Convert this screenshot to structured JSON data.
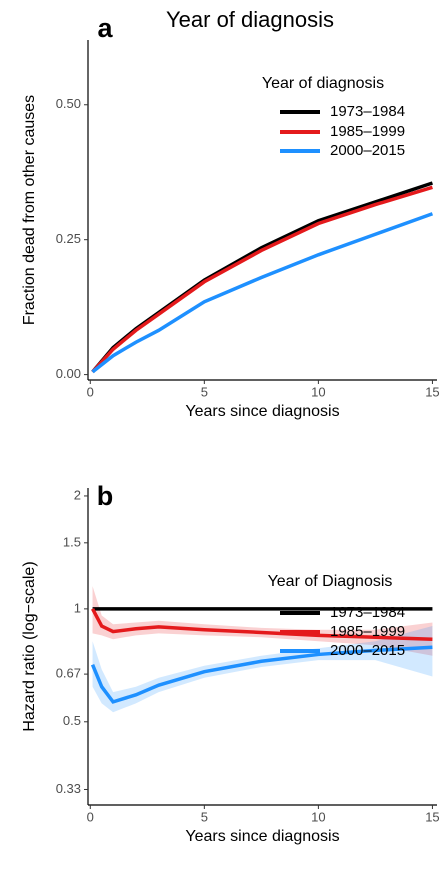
{
  "chart_data": [
    {
      "type": "line",
      "panel": "a",
      "title": "Year of diagnosis",
      "x_label": "Years since diagnosis",
      "y_label": "Fraction dead from other causes",
      "xlim": [
        -0.1,
        15.2
      ],
      "xticks": [
        0,
        5,
        10,
        15
      ],
      "ylim": [
        -0.01,
        0.62
      ],
      "yticks": [
        {
          "value": 0,
          "label": "0.00"
        },
        {
          "value": 0.25,
          "label": "0.25"
        },
        {
          "value": 0.5,
          "label": "0.50"
        }
      ],
      "log_scale": false,
      "grid": false,
      "legend": "top-right",
      "legend_title": "Year of diagnosis",
      "x": [
        0.1,
        1,
        2,
        3,
        5,
        7.5,
        10,
        12.5,
        15
      ],
      "series": [
        {
          "name": "1973–1984",
          "color": "#000000",
          "values": [
            0.005,
            0.05,
            0.085,
            0.115,
            0.175,
            0.235,
            0.285,
            0.32,
            0.355
          ]
        },
        {
          "name": "1985–1999",
          "color": "#e41a1c",
          "values": [
            0.005,
            0.047,
            0.082,
            0.112,
            0.172,
            0.23,
            0.28,
            0.315,
            0.347
          ]
        },
        {
          "name": "2000–2015",
          "color": "#1e90ff",
          "values": [
            0.005,
            0.035,
            0.06,
            0.082,
            0.135,
            0.18,
            0.222,
            0.26,
            0.298
          ]
        }
      ]
    },
    {
      "type": "line",
      "panel": "b",
      "x_label": "Years since diagnosis",
      "y_label": "Hazard ratio (log−scale)",
      "xlim": [
        -0.1,
        15.2
      ],
      "xticks": [
        0,
        5,
        10,
        15
      ],
      "ylim": [
        0.3,
        2.1
      ],
      "yticks": [
        0.33,
        0.5,
        0.67,
        1,
        1.5,
        2
      ],
      "log_scale": true,
      "grid": false,
      "legend": "bottom-right",
      "legend_title": "Year of Diagnosis",
      "x": [
        0.1,
        0.5,
        1,
        2,
        3,
        5,
        7.5,
        10,
        12.5,
        15
      ],
      "series": [
        {
          "name": "1973–1984",
          "color": "#000000",
          "values": [
            1,
            1,
            1,
            1,
            1,
            1,
            1,
            1,
            1,
            1
          ]
        },
        {
          "name": "1985–1999",
          "color": "#e41a1c",
          "values": [
            1.0,
            0.9,
            0.87,
            0.885,
            0.895,
            0.88,
            0.865,
            0.85,
            0.84,
            0.83
          ],
          "lower": [
            0.86,
            0.85,
            0.83,
            0.85,
            0.86,
            0.85,
            0.84,
            0.82,
            0.8,
            0.75
          ],
          "upper": [
            1.15,
            0.96,
            0.91,
            0.92,
            0.93,
            0.91,
            0.89,
            0.88,
            0.88,
            0.92
          ]
        },
        {
          "name": "2000–2015",
          "color": "#1e90ff",
          "values": [
            0.71,
            0.62,
            0.565,
            0.59,
            0.626,
            0.68,
            0.725,
            0.756,
            0.775,
            0.79
          ],
          "lower": [
            0.62,
            0.56,
            0.53,
            0.56,
            0.6,
            0.655,
            0.7,
            0.73,
            0.73,
            0.66
          ],
          "upper": [
            0.82,
            0.69,
            0.6,
            0.62,
            0.655,
            0.705,
            0.75,
            0.785,
            0.82,
            0.9
          ]
        }
      ]
    }
  ]
}
